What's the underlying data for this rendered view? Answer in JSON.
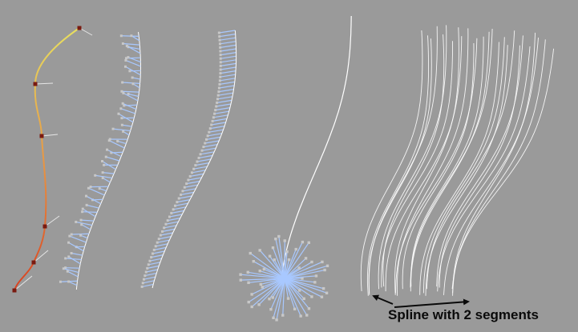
{
  "viewport": {
    "background": "#9a9a9a",
    "caption": "Spline with 2 segments",
    "colors": {
      "curve_highlight": "#e8e060",
      "curve_mid": "#e89040",
      "curve_low": "#d84020",
      "vertex_point": "#7a1a10",
      "tangent_handle": "#e6e6e6",
      "normal_line": "#a8c8ff",
      "normal_end": "#c8c8c8",
      "hair": "#ffffff",
      "arrow": "#0a0a0a"
    },
    "icons": [
      "arrow-left-icon",
      "arrow-right-icon"
    ]
  }
}
